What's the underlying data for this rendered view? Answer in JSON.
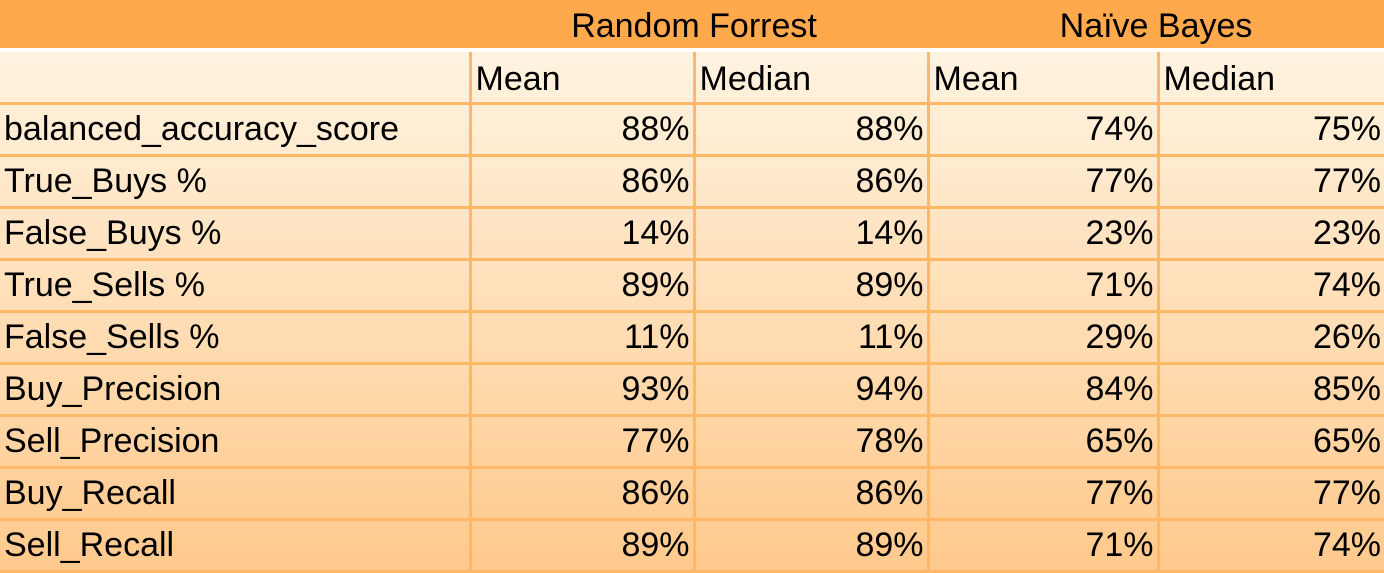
{
  "chart_data": {
    "type": "table",
    "column_groups": [
      {
        "label": "",
        "span": 1
      },
      {
        "label": "Random Forrest",
        "span": 2
      },
      {
        "label": "Naïve Bayes",
        "span": 2
      }
    ],
    "columns": [
      "",
      "Mean",
      "Median",
      "Mean",
      "Median"
    ],
    "rows": [
      {
        "metric": "balanced_accuracy_score",
        "values": [
          "88%",
          "88%",
          "74%",
          "75%"
        ]
      },
      {
        "metric": "True_Buys %",
        "values": [
          "86%",
          "86%",
          "77%",
          "77%"
        ]
      },
      {
        "metric": "False_Buys %",
        "values": [
          "14%",
          "14%",
          "23%",
          "23%"
        ]
      },
      {
        "metric": "True_Sells %",
        "values": [
          "89%",
          "89%",
          "71%",
          "74%"
        ]
      },
      {
        "metric": "False_Sells %",
        "values": [
          "11%",
          "11%",
          "29%",
          "26%"
        ]
      },
      {
        "metric": "Buy_Precision",
        "values": [
          "93%",
          "94%",
          "84%",
          "85%"
        ]
      },
      {
        "metric": "Sell_Precision",
        "values": [
          "77%",
          "78%",
          "65%",
          "65%"
        ]
      },
      {
        "metric": "Buy_Recall",
        "values": [
          "86%",
          "86%",
          "77%",
          "77%"
        ]
      },
      {
        "metric": "Sell_Recall",
        "values": [
          "89%",
          "89%",
          "71%",
          "74%"
        ]
      }
    ]
  },
  "colors": {
    "header_band": "#ffa94d",
    "row_top": "#fff3e0",
    "row_bottom": "#ffc98c",
    "grid_line": "#ffb866"
  }
}
